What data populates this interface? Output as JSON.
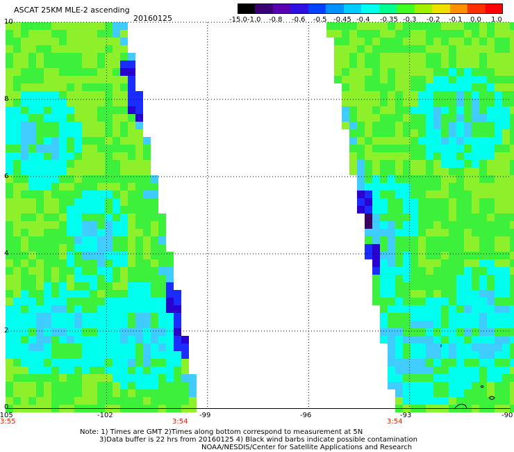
{
  "header": {
    "title": "ASCAT 25KM MLE-2 ascending",
    "date": "20160125"
  },
  "colorbar": {
    "labels": [
      "-15.0",
      "-1.0",
      "-0.8",
      "-0.6",
      "-0.5",
      "-0.45",
      "-0.4",
      "-0.35",
      "-0.3",
      "-0.2",
      "-0.1",
      "0.0",
      "1.0"
    ],
    "colors": [
      "#000000",
      "#3a0070",
      "#5a00b0",
      "#3010e0",
      "#0040ff",
      "#0090ff",
      "#00ccff",
      "#00ffee",
      "#00ff90",
      "#40ff20",
      "#a0f000",
      "#f0e000",
      "#ff9000",
      "#ff3000",
      "#ff0000"
    ]
  },
  "map": {
    "lat_ticks": [
      "0",
      "2",
      "4",
      "6",
      "8",
      "10"
    ],
    "lon_ticks": [
      "-105",
      "-102",
      "-99",
      "-96",
      "-93",
      "-90"
    ],
    "lat_range": [
      0,
      10
    ],
    "lon_range": [
      -105,
      -90
    ],
    "times": [
      "3:55",
      "3:54",
      "3:54"
    ],
    "colors": {
      "green": "#3cf03c",
      "yellowgreen": "#8ef02a",
      "cyan": "#00ffee",
      "lightblue": "#40ccff",
      "blue": "#1a2cff",
      "darkblue": "#2a00d0",
      "darkpurple": "#3a0060"
    }
  },
  "notes": {
    "line1": "Note: 1) Times are GMT 2)Times along bottom correspond to measurement at 5N",
    "line2": "3)Data buffer is 22 hrs from 20160125 4) Black wind barbs indicate possible contamination",
    "line3": "NOAA/NESDIS/Center for Satellite Applications and Research"
  }
}
